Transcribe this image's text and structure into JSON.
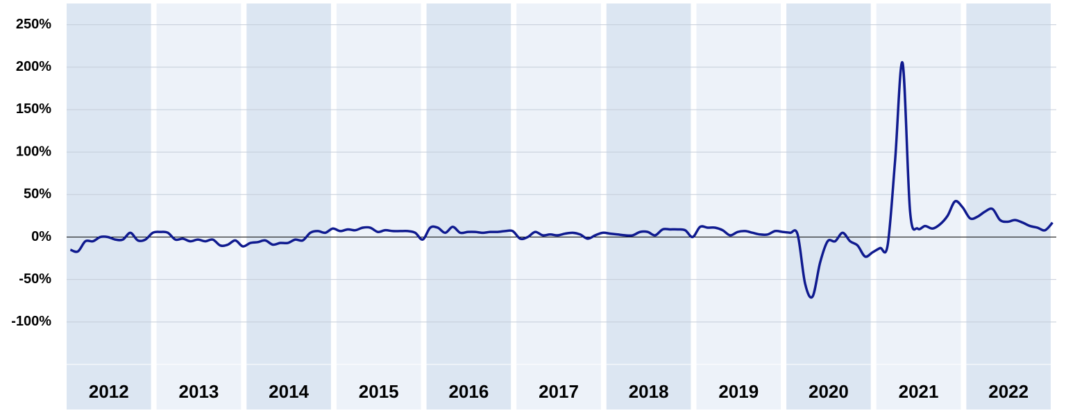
{
  "chart_data": {
    "type": "line",
    "categories": [
      "2012",
      "2013",
      "2014",
      "2015",
      "2016",
      "2017",
      "2018",
      "2019",
      "2020",
      "2021",
      "2022"
    ],
    "values": [
      [
        -15,
        -17,
        -5,
        -5,
        0,
        0,
        -3,
        -3,
        5,
        -4,
        -3,
        5
      ],
      [
        6,
        5,
        -3,
        -2,
        -5,
        -3,
        -5,
        -3,
        -10,
        -9,
        -4,
        -11
      ],
      [
        -7,
        -6,
        -4,
        -9,
        -7,
        -7,
        -3,
        -4,
        5,
        7,
        5,
        10
      ],
      [
        7,
        9,
        8,
        11,
        11,
        6,
        8,
        7,
        7,
        7,
        5,
        -3
      ],
      [
        11,
        11,
        5,
        12,
        5,
        6,
        6,
        5,
        6,
        6,
        7,
        7
      ],
      [
        -2,
        0,
        6,
        2,
        3,
        2,
        4,
        5,
        3,
        -2,
        2,
        5
      ],
      [
        4,
        3,
        2,
        2,
        6,
        6,
        2,
        9,
        9,
        9,
        8,
        0
      ],
      [
        12,
        11,
        11,
        8,
        2,
        6,
        7,
        5,
        3,
        3,
        7,
        6
      ],
      [
        5,
        3,
        -55,
        -70,
        -30,
        -5,
        -5,
        5,
        -5,
        -10,
        -23,
        -18
      ],
      [
        -13,
        -10,
        90,
        205,
        30,
        10,
        13,
        10,
        15,
        25,
        42,
        35
      ],
      [
        22,
        24,
        30,
        33,
        20,
        18,
        20,
        17,
        13,
        11,
        8,
        17
      ]
    ],
    "color": "#0f1a8f",
    "band_colors": [
      "#dce6f2",
      "#edf2f9"
    ],
    "ylim": [
      -150,
      275
    ],
    "yticks": [
      {
        "value": -100,
        "label": "-100%"
      },
      {
        "value": -50,
        "label": "-50%"
      },
      {
        "value": 0,
        "label": "0%"
      },
      {
        "value": 50,
        "label": "50%"
      },
      {
        "value": 100,
        "label": "100%"
      },
      {
        "value": 150,
        "label": "150%"
      },
      {
        "value": 200,
        "label": "200%"
      },
      {
        "value": 250,
        "label": "250%"
      }
    ],
    "grid": true
  }
}
